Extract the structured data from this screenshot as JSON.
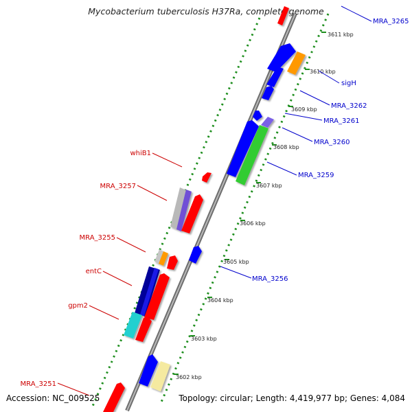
{
  "title": "Mycobacterium tuberculosis H37Ra, complete genome",
  "accession": "Accession: NC_009525",
  "stats": "Topology: circular; Length: 4,419,977 bp; Genes: 4,084",
  "colors": {
    "plus_label": "#0000cc",
    "minus_label": "#cc0000",
    "backbone": "#9a9a9a",
    "tick_dot": "#1f8f1f"
  },
  "kbp_ticks": [
    "3602 kbp",
    "3603 kbp",
    "3604 kbp",
    "3605 kbp",
    "3606 kbp",
    "3607 kbp",
    "3608 kbp",
    "3609 kbp",
    "3610 kbp",
    "3611 kbp"
  ],
  "plus_labels": [
    "MRA_3265",
    "sigH",
    "MRA_3262",
    "MRA_3261",
    "MRA_3260",
    "MRA_3259",
    "MRA_3256"
  ],
  "minus_labels": [
    "whiB1",
    "MRA_3257",
    "MRA_3255",
    "entC",
    "gpm2",
    "MRA_3251"
  ]
}
